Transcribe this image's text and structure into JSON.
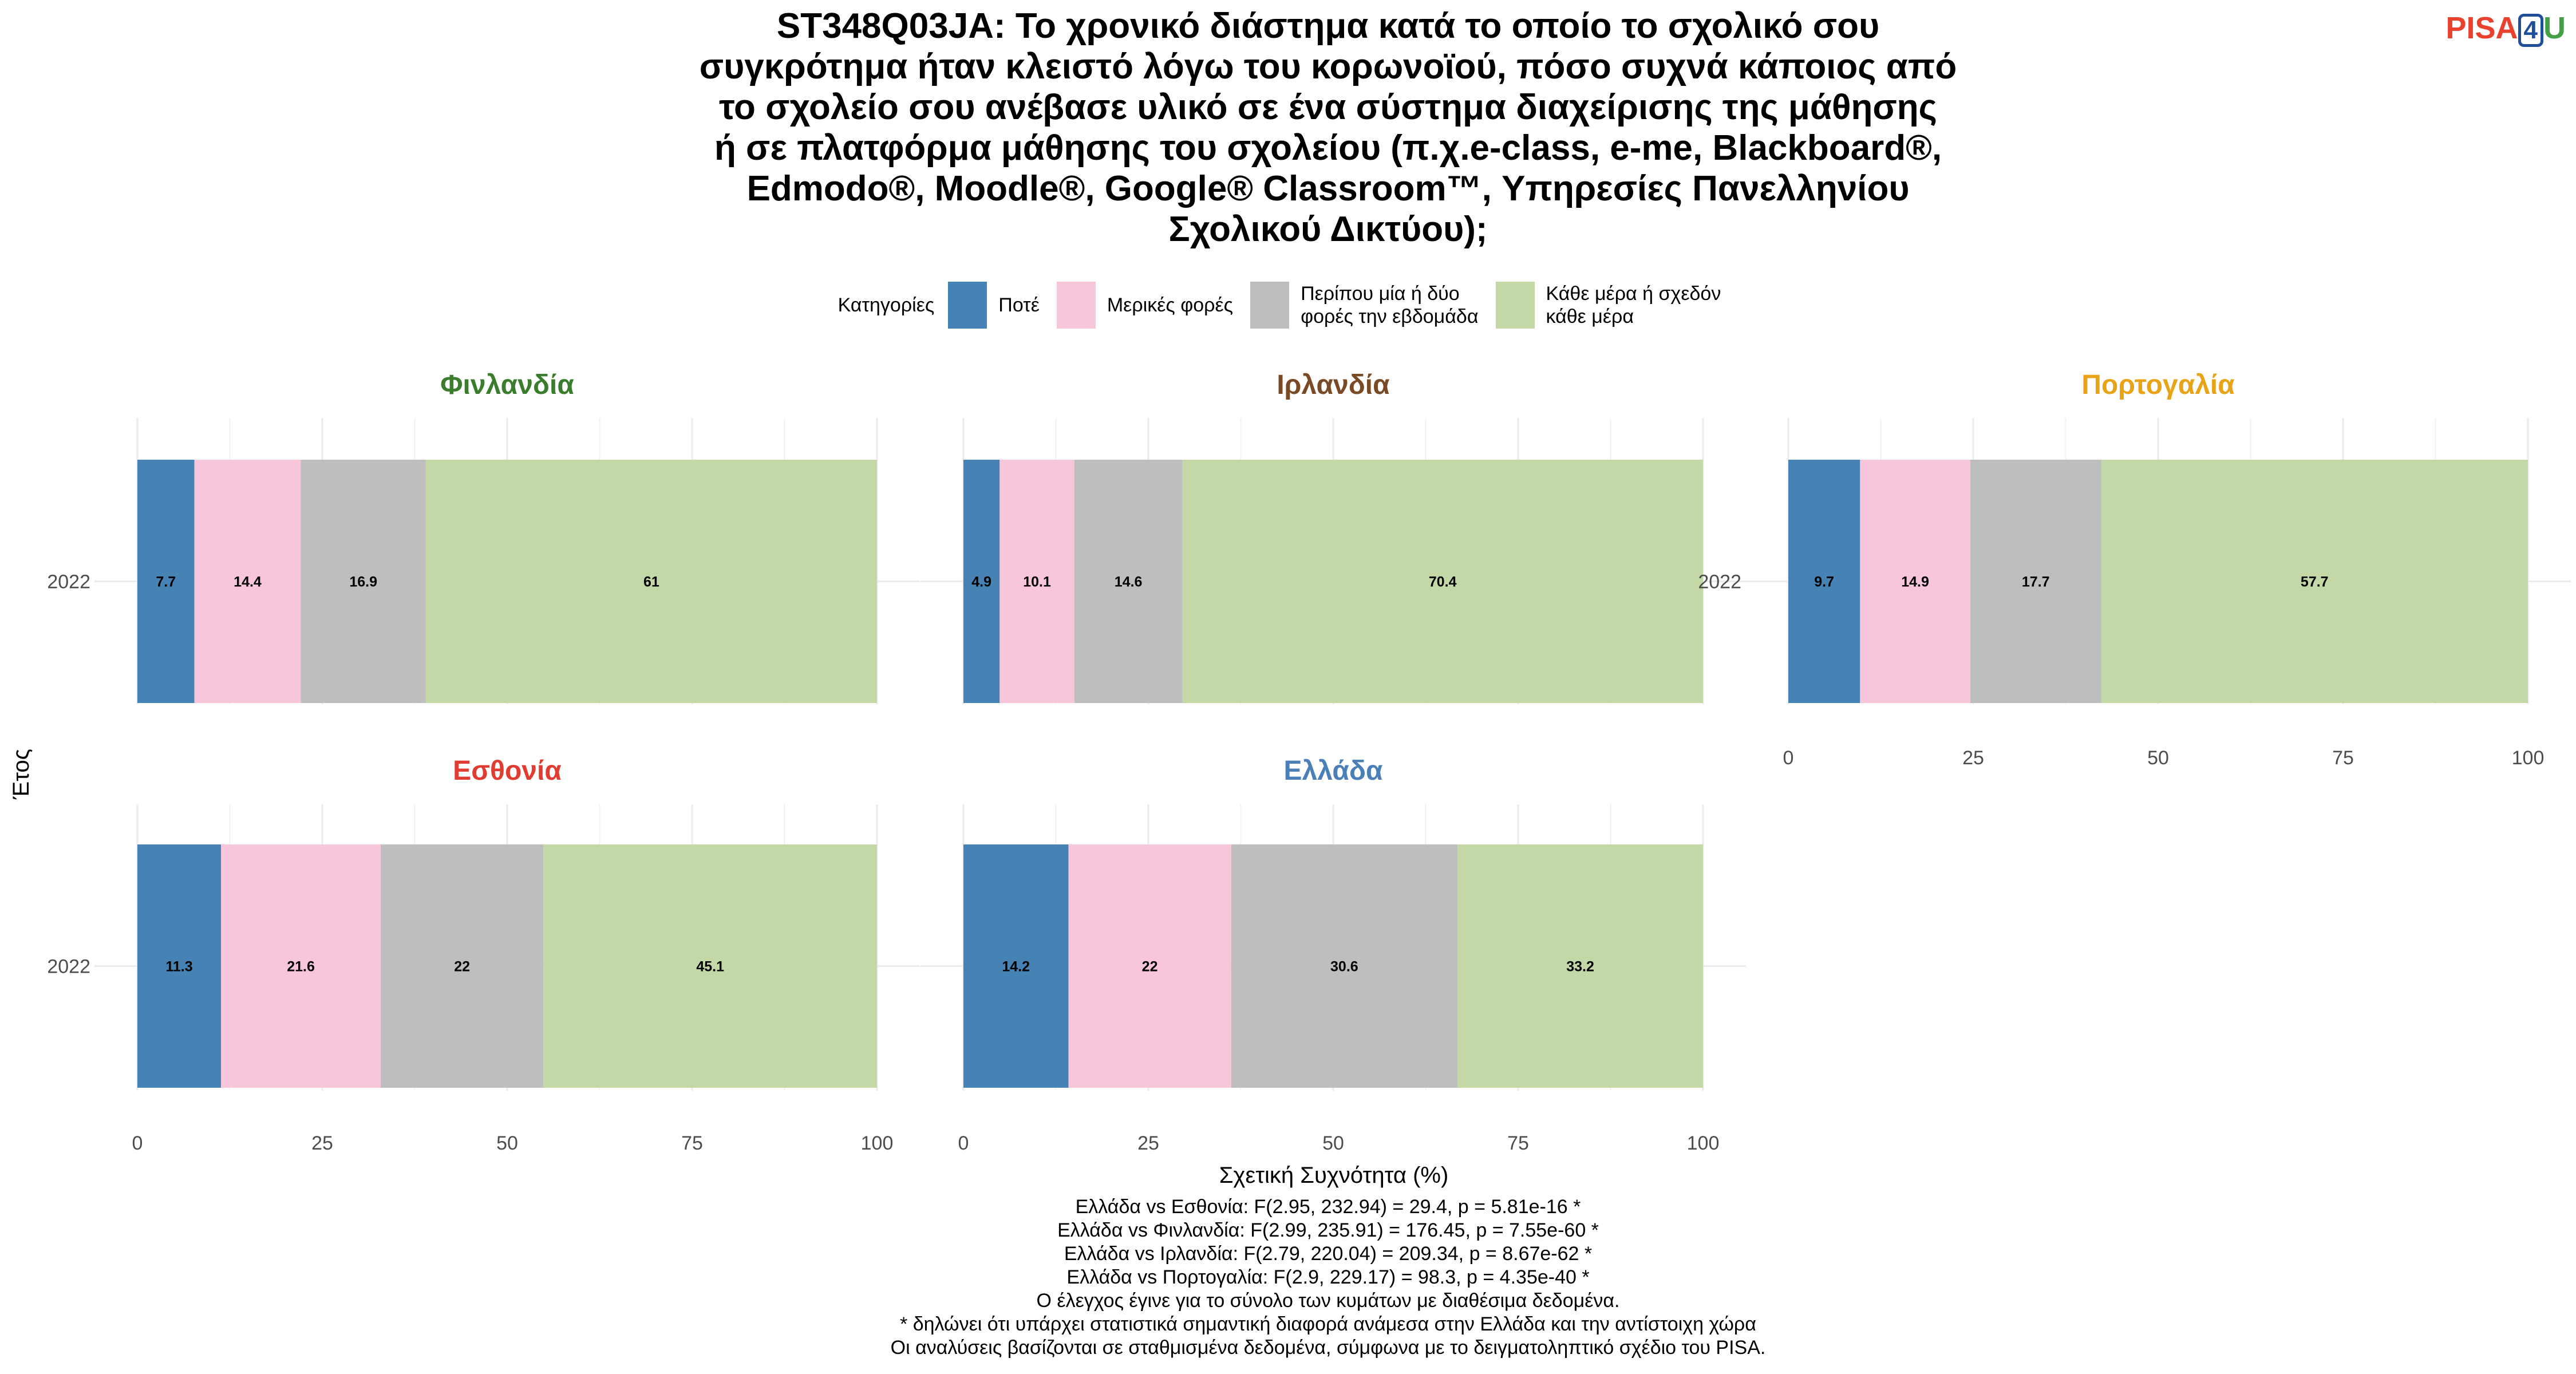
{
  "title": "ST348Q03JA: Το χρονικό διάστημα κατά το οποίο το σχολικό σου\nσυγκρότημα ήταν κλειστό λόγω του κορωνοϊού, πόσο συχνά κάποιος από\nτο σχολείο σου ανέβασε υλικό σε ένα σύστημα διαχείρισης της μάθησης\nή σε πλατφόρμα μάθησης του σχολείου (π.χ.e-class, e-me, Blackboard®,\nEdmodo®, Moodle®, Google® Classroom™, Υπηρεσίες Πανελληνίου\nΣχολικού Δικτύου);",
  "logo": {
    "part1": "PISA",
    "part2": "4",
    "part3": "U"
  },
  "legend": {
    "title": "Κατηγορίες",
    "items": [
      {
        "label": "Ποτέ",
        "color": "#4682b4"
      },
      {
        "label": "Μερικές φορές",
        "color": "#f7c6da"
      },
      {
        "label": "Περίπου μία ή δύο\nφορές την εβδομάδα",
        "color": "#bebebe"
      },
      {
        "label": "Κάθε μέρα ή σχεδόν\nκάθε μέρα",
        "color": "#c3d8a6"
      }
    ]
  },
  "chart_data": {
    "type": "bar",
    "orientation": "horizontal-stacked",
    "xlabel": "Σχετική Συχνότητα (%)",
    "ylabel": "Έτος",
    "xlim": [
      0,
      100
    ],
    "xticks": [
      0,
      25,
      50,
      75,
      100
    ],
    "categories": [
      "Ποτέ",
      "Μερικές φορές",
      "Περίπου μία ή δύο φορές την εβδομάδα",
      "Κάθε μέρα ή σχεδόν κάθε μέρα"
    ],
    "panels": [
      {
        "name": "Φινλανδία",
        "color": "#3a7d2c",
        "year": "2022",
        "values": [
          7.7,
          14.4,
          16.9,
          61
        ]
      },
      {
        "name": "Ιρλανδία",
        "color": "#7a4a26",
        "year": "2022",
        "values": [
          4.9,
          10.1,
          14.6,
          70.4
        ]
      },
      {
        "name": "Πορτογαλία",
        "color": "#e8a317",
        "year": "2022",
        "values": [
          9.7,
          14.9,
          17.7,
          57.7
        ]
      },
      {
        "name": "Εσθονία",
        "color": "#e03c31",
        "year": "2022",
        "values": [
          11.3,
          21.6,
          22,
          45.1
        ]
      },
      {
        "name": "Ελλάδα",
        "color": "#4a7fb8",
        "year": "2022",
        "values": [
          14.2,
          22,
          30.6,
          33.2
        ]
      }
    ]
  },
  "footnotes": [
    "Ελλάδα vs Εσθονία: F(2.95, 232.94) = 29.4, p = 5.81e-16 *",
    "Ελλάδα vs Φινλανδία: F(2.99, 235.91) = 176.45, p = 7.55e-60 *",
    "Ελλάδα vs Ιρλανδία: F(2.79, 220.04) = 209.34, p = 8.67e-62 *",
    "Ελλάδα vs Πορτογαλία: F(2.9, 229.17) = 98.3, p = 4.35e-40 *",
    "Ο έλεγχος έγινε για το σύνολο των κυμάτων με διαθέσιμα δεδομένα.",
    "* δηλώνει ότι υπάρχει στατιστικά σημαντική διαφορά ανάμεσα στην Ελλάδα και την αντίστοιχη χώρα",
    "Οι αναλύσεις βασίζονται σε σταθμισμένα δεδομένα, σύμφωνα με το δειγματοληπτικό σχέδιο του PISA."
  ]
}
